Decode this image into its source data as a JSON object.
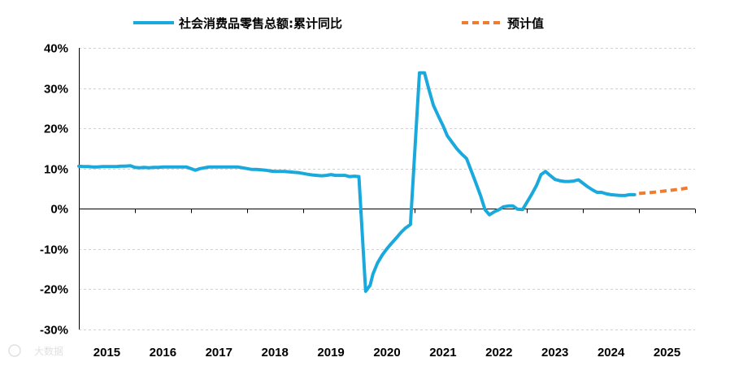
{
  "chart_data": {
    "type": "line",
    "title": "",
    "xlabel": "",
    "ylabel": "",
    "ylim": [
      -30,
      40
    ],
    "yticks": [
      -30,
      -20,
      -10,
      0,
      10,
      20,
      30,
      40
    ],
    "ytick_labels": [
      "-30%",
      "-20%",
      "-10%",
      "0%",
      "10%",
      "20%",
      "30%",
      "40%"
    ],
    "xlim": [
      2015,
      2026
    ],
    "xtick_labels": [
      "2015",
      "2016",
      "2017",
      "2018",
      "2019",
      "2020",
      "2021",
      "2022",
      "2023",
      "2024",
      "2025"
    ],
    "grid": "horizontal-dashed",
    "legend": "top",
    "series": [
      {
        "name": "社会消费品零售总额:累计同比",
        "color": "#1aa9dc",
        "style": "solid",
        "points": [
          [
            2015.0,
            10.6
          ],
          [
            2015.08,
            10.5
          ],
          [
            2015.17,
            10.5
          ],
          [
            2015.25,
            10.4
          ],
          [
            2015.33,
            10.4
          ],
          [
            2015.42,
            10.5
          ],
          [
            2015.5,
            10.5
          ],
          [
            2015.58,
            10.5
          ],
          [
            2015.67,
            10.5
          ],
          [
            2015.75,
            10.6
          ],
          [
            2015.83,
            10.6
          ],
          [
            2015.92,
            10.7
          ],
          [
            2016.0,
            10.3
          ],
          [
            2016.08,
            10.2
          ],
          [
            2016.17,
            10.3
          ],
          [
            2016.25,
            10.2
          ],
          [
            2016.33,
            10.3
          ],
          [
            2016.42,
            10.3
          ],
          [
            2016.5,
            10.4
          ],
          [
            2016.58,
            10.4
          ],
          [
            2016.67,
            10.4
          ],
          [
            2016.75,
            10.4
          ],
          [
            2016.83,
            10.4
          ],
          [
            2016.92,
            10.4
          ],
          [
            2017.0,
            10.0
          ],
          [
            2017.08,
            9.6
          ],
          [
            2017.17,
            10.0
          ],
          [
            2017.25,
            10.2
          ],
          [
            2017.33,
            10.4
          ],
          [
            2017.42,
            10.4
          ],
          [
            2017.5,
            10.4
          ],
          [
            2017.58,
            10.4
          ],
          [
            2017.67,
            10.4
          ],
          [
            2017.75,
            10.4
          ],
          [
            2017.83,
            10.4
          ],
          [
            2017.92,
            10.2
          ],
          [
            2018.0,
            10.0
          ],
          [
            2018.08,
            9.8
          ],
          [
            2018.17,
            9.8
          ],
          [
            2018.25,
            9.7
          ],
          [
            2018.33,
            9.6
          ],
          [
            2018.42,
            9.4
          ],
          [
            2018.5,
            9.3
          ],
          [
            2018.58,
            9.3
          ],
          [
            2018.67,
            9.3
          ],
          [
            2018.75,
            9.2
          ],
          [
            2018.83,
            9.1
          ],
          [
            2018.92,
            9.0
          ],
          [
            2019.0,
            8.8
          ],
          [
            2019.08,
            8.6
          ],
          [
            2019.17,
            8.4
          ],
          [
            2019.25,
            8.3
          ],
          [
            2019.33,
            8.2
          ],
          [
            2019.42,
            8.3
          ],
          [
            2019.5,
            8.5
          ],
          [
            2019.58,
            8.3
          ],
          [
            2019.67,
            8.3
          ],
          [
            2019.75,
            8.3
          ],
          [
            2019.83,
            8.0
          ],
          [
            2019.92,
            8.1
          ],
          [
            2020.0,
            8.0
          ],
          [
            2020.12,
            -20.5
          ],
          [
            2020.2,
            -19.0
          ],
          [
            2020.25,
            -16.2
          ],
          [
            2020.33,
            -13.5
          ],
          [
            2020.42,
            -11.4
          ],
          [
            2020.5,
            -9.9
          ],
          [
            2020.58,
            -8.6
          ],
          [
            2020.67,
            -7.2
          ],
          [
            2020.75,
            -5.9
          ],
          [
            2020.83,
            -4.8
          ],
          [
            2020.92,
            -3.9
          ],
          [
            2021.08,
            33.8
          ],
          [
            2021.17,
            33.8
          ],
          [
            2021.25,
            29.6
          ],
          [
            2021.33,
            25.7
          ],
          [
            2021.42,
            23.0
          ],
          [
            2021.5,
            20.7
          ],
          [
            2021.58,
            18.1
          ],
          [
            2021.67,
            16.4
          ],
          [
            2021.75,
            14.9
          ],
          [
            2021.83,
            13.7
          ],
          [
            2021.92,
            12.5
          ],
          [
            2022.08,
            6.7
          ],
          [
            2022.17,
            3.3
          ],
          [
            2022.25,
            -0.2
          ],
          [
            2022.33,
            -1.5
          ],
          [
            2022.42,
            -0.7
          ],
          [
            2022.5,
            -0.2
          ],
          [
            2022.58,
            0.5
          ],
          [
            2022.67,
            0.7
          ],
          [
            2022.75,
            0.7
          ],
          [
            2022.83,
            -0.1
          ],
          [
            2022.92,
            -0.2
          ],
          [
            2023.08,
            3.5
          ],
          [
            2023.17,
            5.8
          ],
          [
            2023.25,
            8.5
          ],
          [
            2023.33,
            9.3
          ],
          [
            2023.42,
            8.2
          ],
          [
            2023.5,
            7.3
          ],
          [
            2023.58,
            7.0
          ],
          [
            2023.67,
            6.8
          ],
          [
            2023.75,
            6.8
          ],
          [
            2023.83,
            6.9
          ],
          [
            2023.92,
            7.2
          ],
          [
            2024.08,
            5.5
          ],
          [
            2024.17,
            4.7
          ],
          [
            2024.25,
            4.1
          ],
          [
            2024.33,
            4.1
          ],
          [
            2024.42,
            3.7
          ],
          [
            2024.5,
            3.5
          ],
          [
            2024.58,
            3.4
          ],
          [
            2024.67,
            3.3
          ],
          [
            2024.75,
            3.3
          ],
          [
            2024.83,
            3.5
          ],
          [
            2024.92,
            3.5
          ]
        ]
      },
      {
        "name": "预计值",
        "color": "#ee7d31",
        "style": "dashed",
        "points": [
          [
            2025.0,
            3.8
          ],
          [
            2025.25,
            4.1
          ],
          [
            2025.5,
            4.5
          ],
          [
            2025.75,
            4.9
          ],
          [
            2025.92,
            5.3
          ]
        ]
      }
    ]
  },
  "watermark": "大数据"
}
